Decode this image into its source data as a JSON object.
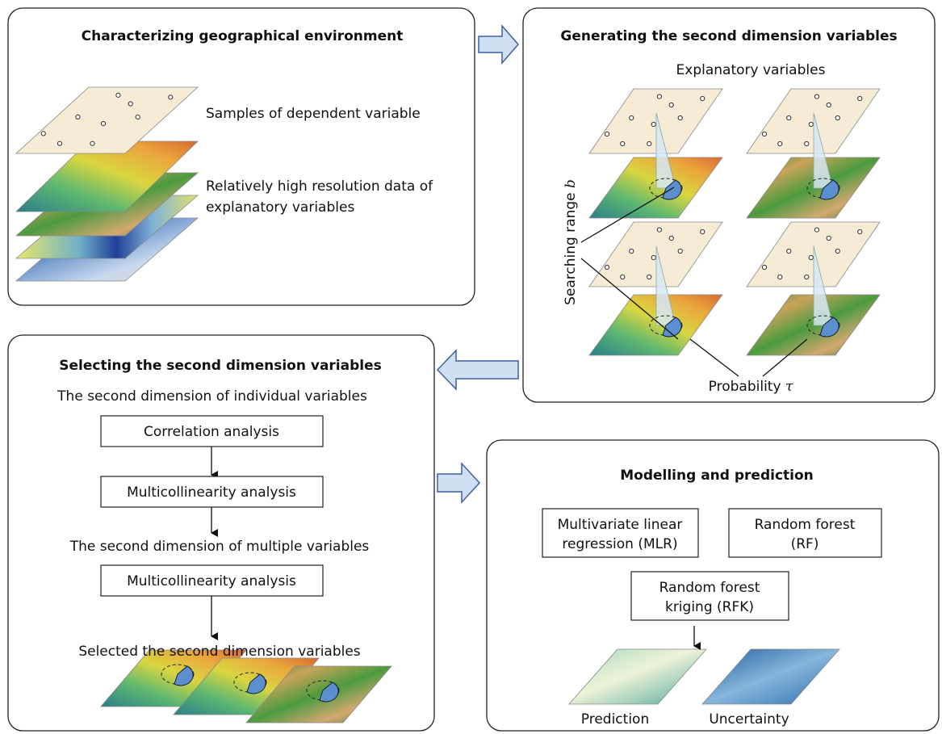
{
  "panels": [
    {
      "title": "Characterizing geographical environment",
      "samples_label": "Samples of dependent variable",
      "data_label": [
        "Relatively high resolution data of",
        "explanatory variables"
      ]
    },
    {
      "title": "Generating the second dimension variables",
      "explanatory_label": "Explanatory variables",
      "range_label": {
        "text": "Searching range",
        "symbol": "b"
      },
      "probability_label": {
        "text": "Probability",
        "symbol": "τ"
      }
    },
    {
      "title": "Selecting the second dimension variables",
      "individual_label": "The second dimension of individual variables",
      "boxes": [
        "Correlation analysis",
        "Multicollinearity analysis",
        "Multicollinearity analysis"
      ],
      "multiple_label": "The second dimension of multiple variables",
      "selected_label": "Selected the second dimension variables"
    },
    {
      "title": "Modelling and prediction",
      "models": [
        [
          "Multivariate linear",
          "regression (MLR)"
        ],
        [
          "Random forest",
          "(RF)"
        ],
        [
          "Random forest",
          "kriging (RFK)"
        ]
      ],
      "outputs": [
        "Prediction",
        "Uncertainty"
      ]
    }
  ]
}
